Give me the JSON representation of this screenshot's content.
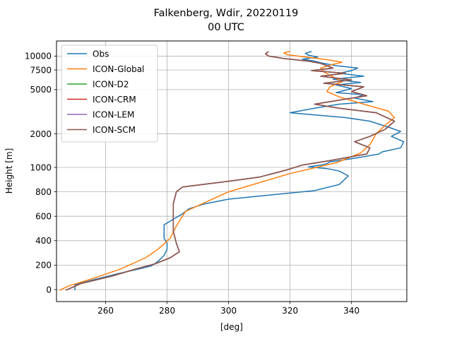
{
  "chart_data": {
    "type": "line",
    "title": "Falkenberg, Wdir, 20220119",
    "subtitle": "00 UTC",
    "xlabel": "[deg]",
    "ylabel": "Height [m]",
    "xlim": [
      244,
      358
    ],
    "x_ticks": [
      260,
      280,
      300,
      320,
      340
    ],
    "y_ticks": [
      0,
      200,
      400,
      600,
      800,
      1000,
      2000,
      5000,
      7500,
      10000
    ],
    "y_scale": "piecewise: linear 0–1000 m, logarithmic above 1000 m",
    "ylim": [
      -100,
      14000
    ],
    "grid": true,
    "legend_position": "upper-left",
    "series": [
      {
        "name": "Obs",
        "color": "#1f77b4",
        "points": [
          [
            250,
            -5
          ],
          [
            250,
            15
          ],
          [
            250,
            40
          ],
          [
            256,
            80
          ],
          [
            264,
            130
          ],
          [
            272,
            175
          ],
          [
            275,
            195
          ],
          [
            277,
            230
          ],
          [
            279,
            280
          ],
          [
            280,
            330
          ],
          [
            280,
            380
          ],
          [
            279,
            420
          ],
          [
            279,
            470
          ],
          [
            279,
            530
          ],
          [
            281,
            560
          ],
          [
            283,
            590
          ],
          [
            285,
            620
          ],
          [
            287,
            660
          ],
          [
            292,
            700
          ],
          [
            300,
            740
          ],
          [
            312,
            770
          ],
          [
            328,
            810
          ],
          [
            336,
            860
          ],
          [
            339,
            930
          ],
          [
            336,
            970
          ],
          [
            332,
            990
          ],
          [
            326,
            1010
          ],
          [
            330,
            1050
          ],
          [
            332,
            1080
          ],
          [
            333,
            1120
          ],
          [
            336,
            1150
          ],
          [
            342,
            1220
          ],
          [
            349,
            1320
          ],
          [
            350,
            1380
          ],
          [
            356,
            1500
          ],
          [
            357,
            1700
          ],
          [
            353,
            1900
          ],
          [
            356,
            2100
          ],
          [
            352,
            2300
          ],
          [
            346,
            2600
          ],
          [
            338,
            2800
          ],
          [
            320,
            3100
          ],
          [
            328,
            3400
          ],
          [
            336,
            3700
          ],
          [
            347,
            3900
          ],
          [
            341,
            4200
          ],
          [
            344,
            4500
          ],
          [
            335,
            4700
          ],
          [
            340,
            5100
          ],
          [
            335,
            5500
          ],
          [
            343,
            5800
          ],
          [
            334,
            6200
          ],
          [
            344,
            6600
          ],
          [
            336,
            7000
          ],
          [
            340,
            7400
          ],
          [
            342,
            7800
          ],
          [
            335,
            8200
          ],
          [
            331,
            8600
          ],
          [
            328,
            9000
          ],
          [
            324,
            9400
          ],
          [
            329,
            9800
          ],
          [
            326,
            10200
          ],
          [
            325,
            10600
          ],
          [
            327,
            11000
          ]
        ]
      },
      {
        "name": "ICON-Global",
        "color": "#ff7f0e",
        "points": [
          [
            245,
            -5
          ],
          [
            248,
            30
          ],
          [
            257,
            100
          ],
          [
            265,
            170
          ],
          [
            273,
            260
          ],
          [
            277,
            330
          ],
          [
            281,
            420
          ],
          [
            283,
            520
          ],
          [
            286,
            640
          ],
          [
            300,
            800
          ],
          [
            320,
            950
          ],
          [
            335,
            1100
          ],
          [
            343,
            1350
          ],
          [
            346,
            1600
          ],
          [
            348,
            2000
          ],
          [
            351,
            2400
          ],
          [
            354,
            2800
          ],
          [
            352,
            3200
          ],
          [
            344,
            3700
          ],
          [
            336,
            4300
          ],
          [
            332,
            4800
          ],
          [
            333,
            5300
          ],
          [
            337,
            5900
          ],
          [
            334,
            6500
          ],
          [
            331,
            7200
          ],
          [
            330,
            7800
          ],
          [
            333,
            8300
          ],
          [
            337,
            8800
          ],
          [
            332,
            9300
          ],
          [
            325,
            9800
          ],
          [
            319,
            10300
          ],
          [
            318,
            10700
          ],
          [
            320,
            11000
          ]
        ]
      },
      {
        "name": "ICON-D2",
        "color": "#2ca02c",
        "points": [
          [
            247,
            -5
          ],
          [
            252,
            50
          ],
          [
            262,
            110
          ],
          [
            270,
            170
          ],
          [
            276,
            210
          ],
          [
            281,
            260
          ],
          [
            284,
            310
          ],
          [
            283,
            380
          ],
          [
            282,
            480
          ],
          [
            282,
            580
          ],
          [
            282,
            700
          ],
          [
            283,
            800
          ],
          [
            285,
            840
          ],
          [
            298,
            880
          ],
          [
            310,
            920
          ],
          [
            319,
            980
          ],
          [
            324,
            1050
          ],
          [
            333,
            1150
          ],
          [
            345,
            1320
          ],
          [
            346,
            1500
          ],
          [
            341,
            1700
          ],
          [
            346,
            1900
          ],
          [
            351,
            2200
          ],
          [
            354,
            2600
          ],
          [
            348,
            3100
          ],
          [
            336,
            3400
          ],
          [
            328,
            3700
          ],
          [
            338,
            4100
          ],
          [
            345,
            4400
          ],
          [
            340,
            4800
          ],
          [
            344,
            5300
          ],
          [
            331,
            5700
          ],
          [
            340,
            6100
          ],
          [
            330,
            6600
          ],
          [
            338,
            7000
          ],
          [
            327,
            7400
          ],
          [
            334,
            7800
          ],
          [
            332,
            8200
          ],
          [
            330,
            8600
          ],
          [
            326,
            9000
          ],
          [
            318,
            9500
          ],
          [
            313,
            10000
          ],
          [
            312,
            10500
          ],
          [
            313,
            11000
          ]
        ]
      },
      {
        "name": "ICON-CRM",
        "color": "#d62728",
        "points": [
          [
            247,
            -5
          ],
          [
            252,
            50
          ],
          [
            262,
            110
          ],
          [
            270,
            170
          ],
          [
            276,
            210
          ],
          [
            281,
            260
          ],
          [
            284,
            310
          ],
          [
            283,
            380
          ],
          [
            282,
            480
          ],
          [
            282,
            580
          ],
          [
            282,
            700
          ],
          [
            283,
            800
          ],
          [
            285,
            840
          ],
          [
            298,
            880
          ],
          [
            310,
            920
          ],
          [
            319,
            980
          ],
          [
            324,
            1050
          ],
          [
            333,
            1150
          ],
          [
            345,
            1320
          ],
          [
            346,
            1500
          ],
          [
            341,
            1700
          ],
          [
            346,
            1900
          ],
          [
            351,
            2200
          ],
          [
            354,
            2600
          ],
          [
            348,
            3100
          ],
          [
            336,
            3400
          ],
          [
            328,
            3700
          ],
          [
            338,
            4100
          ],
          [
            345,
            4400
          ],
          [
            340,
            4800
          ],
          [
            344,
            5300
          ],
          [
            331,
            5700
          ],
          [
            340,
            6100
          ],
          [
            330,
            6600
          ],
          [
            338,
            7000
          ],
          [
            327,
            7400
          ],
          [
            334,
            7800
          ],
          [
            332,
            8200
          ],
          [
            330,
            8600
          ],
          [
            326,
            9000
          ],
          [
            318,
            9500
          ],
          [
            313,
            10000
          ],
          [
            312,
            10500
          ],
          [
            313,
            11000
          ]
        ]
      },
      {
        "name": "ICON-LEM",
        "color": "#9467bd",
        "points": [
          [
            247,
            -5
          ],
          [
            252,
            50
          ],
          [
            262,
            110
          ],
          [
            270,
            170
          ],
          [
            276,
            210
          ],
          [
            281,
            260
          ],
          [
            284,
            310
          ],
          [
            283,
            380
          ],
          [
            282,
            480
          ],
          [
            282,
            580
          ],
          [
            282,
            700
          ],
          [
            283,
            800
          ],
          [
            285,
            840
          ],
          [
            298,
            880
          ],
          [
            310,
            920
          ],
          [
            319,
            980
          ],
          [
            324,
            1050
          ],
          [
            333,
            1150
          ],
          [
            345,
            1320
          ],
          [
            346,
            1500
          ],
          [
            341,
            1700
          ],
          [
            346,
            1900
          ],
          [
            351,
            2200
          ],
          [
            354,
            2600
          ],
          [
            348,
            3100
          ],
          [
            336,
            3400
          ],
          [
            328,
            3700
          ],
          [
            338,
            4100
          ],
          [
            345,
            4400
          ],
          [
            340,
            4800
          ],
          [
            344,
            5300
          ],
          [
            331,
            5700
          ],
          [
            340,
            6100
          ],
          [
            330,
            6600
          ],
          [
            338,
            7000
          ],
          [
            327,
            7400
          ],
          [
            334,
            7800
          ],
          [
            332,
            8200
          ],
          [
            330,
            8600
          ],
          [
            326,
            9000
          ],
          [
            318,
            9500
          ],
          [
            313,
            10000
          ],
          [
            312,
            10500
          ],
          [
            313,
            11000
          ]
        ]
      },
      {
        "name": "ICON-SCM",
        "color": "#8c564b",
        "points": [
          [
            247,
            -5
          ],
          [
            252,
            50
          ],
          [
            262,
            110
          ],
          [
            270,
            170
          ],
          [
            276,
            210
          ],
          [
            281,
            260
          ],
          [
            284,
            310
          ],
          [
            283,
            380
          ],
          [
            282,
            480
          ],
          [
            282,
            580
          ],
          [
            282,
            700
          ],
          [
            283,
            800
          ],
          [
            285,
            840
          ],
          [
            298,
            880
          ],
          [
            310,
            920
          ],
          [
            319,
            980
          ],
          [
            324,
            1050
          ],
          [
            333,
            1150
          ],
          [
            345,
            1320
          ],
          [
            346,
            1500
          ],
          [
            341,
            1700
          ],
          [
            346,
            1900
          ],
          [
            351,
            2200
          ],
          [
            354,
            2600
          ],
          [
            348,
            3100
          ],
          [
            336,
            3400
          ],
          [
            328,
            3700
          ],
          [
            338,
            4100
          ],
          [
            345,
            4400
          ],
          [
            340,
            4800
          ],
          [
            344,
            5300
          ],
          [
            331,
            5700
          ],
          [
            340,
            6100
          ],
          [
            330,
            6600
          ],
          [
            338,
            7000
          ],
          [
            327,
            7400
          ],
          [
            334,
            7800
          ],
          [
            332,
            8200
          ],
          [
            330,
            8600
          ],
          [
            326,
            9000
          ],
          [
            318,
            9500
          ],
          [
            313,
            10000
          ],
          [
            312,
            10500
          ],
          [
            313,
            11000
          ]
        ]
      }
    ]
  }
}
